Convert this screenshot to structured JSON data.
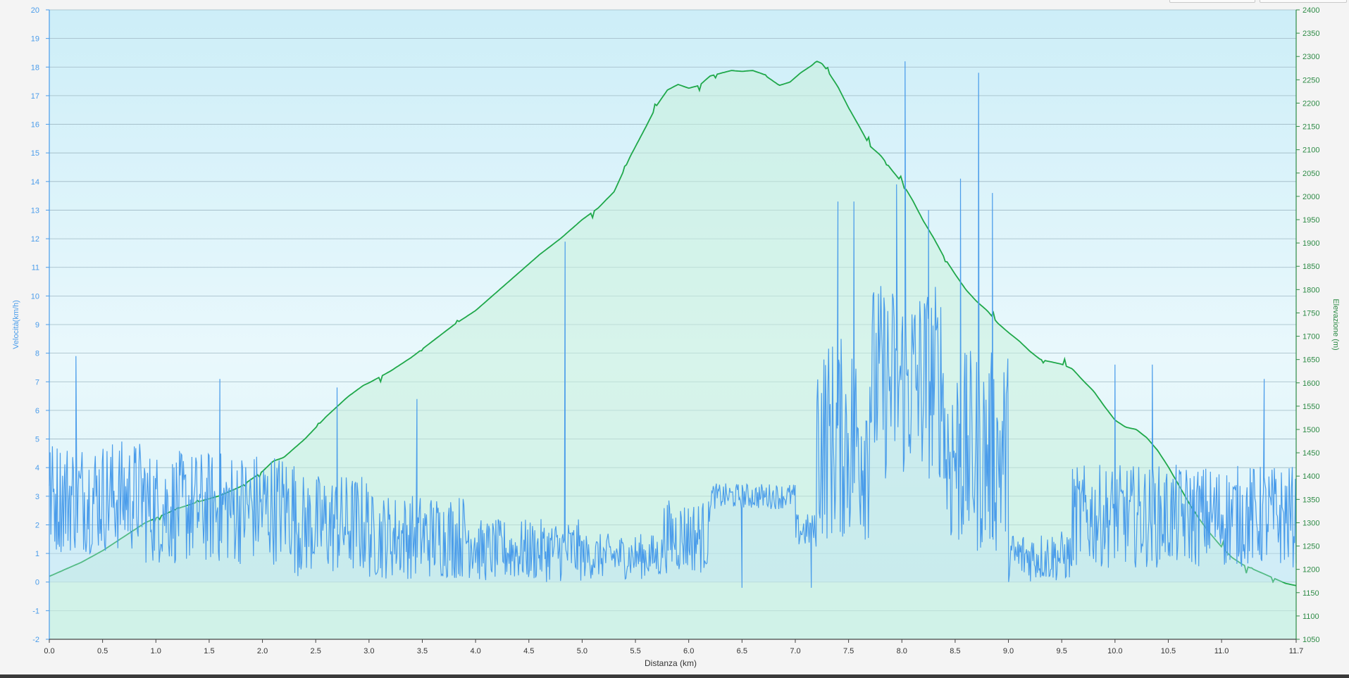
{
  "chart_data": {
    "type": "line",
    "xlabel": "Distanza  (km)",
    "ylabel": "Velocità(km/h)",
    "y2label": "Elevazione (m)",
    "xlim": [
      0,
      11.7
    ],
    "ylim": [
      -2,
      20
    ],
    "y2lim": [
      1050,
      2400
    ],
    "x_ticks": [
      0.0,
      0.5,
      1.0,
      1.5,
      2.0,
      2.5,
      3.0,
      3.5,
      4.0,
      4.5,
      5.0,
      5.5,
      6.0,
      6.5,
      7.0,
      7.5,
      8.0,
      8.5,
      9.0,
      9.5,
      10.0,
      10.5,
      11.0,
      11.7
    ],
    "y_ticks": [
      -2,
      -1,
      0,
      1,
      2,
      3,
      4,
      5,
      6,
      7,
      8,
      9,
      10,
      11,
      12,
      13,
      14,
      15,
      16,
      17,
      18,
      19,
      20
    ],
    "y2_ticks": [
      1050,
      1100,
      1150,
      1200,
      1250,
      1300,
      1350,
      1400,
      1450,
      1500,
      1550,
      1600,
      1650,
      1700,
      1750,
      1800,
      1850,
      1900,
      1950,
      2000,
      2050,
      2100,
      2150,
      2200,
      2250,
      2300,
      2350,
      2400
    ],
    "grid": true,
    "colors": {
      "speed": "#4a9cea",
      "elevation": "#1fa84a",
      "left_axis": "#4a9cea",
      "right_axis": "#2e8b46"
    },
    "series": [
      {
        "name": "Elevazione (m)",
        "axis": "right",
        "x": [
          0.0,
          0.1,
          0.3,
          0.5,
          0.7,
          0.9,
          1.0,
          1.2,
          1.4,
          1.6,
          1.8,
          2.0,
          2.1,
          2.2,
          2.4,
          2.6,
          2.8,
          2.95,
          3.0,
          3.2,
          3.4,
          3.6,
          3.8,
          4.0,
          4.2,
          4.4,
          4.6,
          4.8,
          5.0,
          5.15,
          5.3,
          5.45,
          5.6,
          5.7,
          5.8,
          5.9,
          6.0,
          6.1,
          6.2,
          6.4,
          6.5,
          6.6,
          6.7,
          6.85,
          6.95,
          7.05,
          7.15,
          7.2,
          7.25,
          7.3,
          7.4,
          7.5,
          7.6,
          7.7,
          7.8,
          7.9,
          8.0,
          8.1,
          8.2,
          8.3,
          8.4,
          8.5,
          8.6,
          8.7,
          8.8,
          8.9,
          9.0,
          9.1,
          9.2,
          9.3,
          9.4,
          9.5,
          9.6,
          9.7,
          9.8,
          9.9,
          10.0,
          10.1,
          10.2,
          10.3,
          10.4,
          10.5,
          10.6,
          10.7,
          10.8,
          10.9,
          11.0,
          11.1,
          11.2,
          11.3,
          11.4,
          11.5,
          11.6,
          11.7
        ],
        "values": [
          1185,
          1195,
          1215,
          1240,
          1270,
          1300,
          1310,
          1330,
          1345,
          1358,
          1378,
          1410,
          1432,
          1440,
          1480,
          1528,
          1570,
          1595,
          1600,
          1625,
          1655,
          1690,
          1725,
          1755,
          1795,
          1835,
          1875,
          1910,
          1950,
          1975,
          2010,
          2085,
          2150,
          2195,
          2228,
          2240,
          2232,
          2238,
          2258,
          2270,
          2268,
          2270,
          2262,
          2238,
          2245,
          2265,
          2280,
          2290,
          2285,
          2270,
          2235,
          2190,
          2150,
          2108,
          2088,
          2058,
          2030,
          1992,
          1948,
          1910,
          1868,
          1833,
          1800,
          1775,
          1755,
          1728,
          1708,
          1690,
          1668,
          1650,
          1645,
          1640,
          1630,
          1605,
          1582,
          1550,
          1520,
          1505,
          1500,
          1482,
          1455,
          1420,
          1380,
          1340,
          1305,
          1275,
          1248,
          1225,
          1210,
          1200,
          1190,
          1180,
          1170,
          1165
        ]
      },
      {
        "name": "Velocità(km/h)",
        "axis": "left",
        "segments": [
          {
            "from": 0.0,
            "to": 0.9,
            "base": 3.0,
            "amp": 2.0
          },
          {
            "from": 0.9,
            "to": 2.3,
            "base": 2.6,
            "amp": 2.0
          },
          {
            "from": 2.3,
            "to": 3.0,
            "base": 2.0,
            "amp": 1.8
          },
          {
            "from": 3.0,
            "to": 4.0,
            "base": 1.6,
            "amp": 1.5
          },
          {
            "from": 4.0,
            "to": 5.0,
            "base": 1.1,
            "amp": 1.1
          },
          {
            "from": 5.0,
            "to": 5.75,
            "base": 0.9,
            "amp": 0.8
          },
          {
            "from": 5.75,
            "to": 6.2,
            "base": 1.6,
            "amp": 1.3
          },
          {
            "from": 6.2,
            "to": 7.0,
            "base": 3.0,
            "amp": 0.45
          },
          {
            "from": 7.0,
            "to": 7.2,
            "base": 1.8,
            "amp": 0.6
          },
          {
            "from": 7.2,
            "to": 7.7,
            "base": 5.0,
            "amp": 3.6
          },
          {
            "from": 7.7,
            "to": 8.4,
            "base": 7.0,
            "amp": 3.5
          },
          {
            "from": 8.4,
            "to": 9.0,
            "base": 4.5,
            "amp": 3.6
          },
          {
            "from": 9.0,
            "to": 9.6,
            "base": 0.9,
            "amp": 0.9
          },
          {
            "from": 9.6,
            "to": 11.7,
            "base": 2.3,
            "amp": 1.8
          }
        ],
        "spikes": [
          {
            "x": 0.25,
            "y": 7.9
          },
          {
            "x": 1.6,
            "y": 7.1
          },
          {
            "x": 2.7,
            "y": 6.8
          },
          {
            "x": 3.45,
            "y": 6.4
          },
          {
            "x": 4.84,
            "y": 11.9
          },
          {
            "x": 7.4,
            "y": 13.3
          },
          {
            "x": 7.55,
            "y": 13.3
          },
          {
            "x": 7.95,
            "y": 13.9
          },
          {
            "x": 8.03,
            "y": 18.2
          },
          {
            "x": 8.25,
            "y": 13.0
          },
          {
            "x": 8.55,
            "y": 14.1
          },
          {
            "x": 8.72,
            "y": 17.8
          },
          {
            "x": 8.85,
            "y": 13.6
          },
          {
            "x": 10.0,
            "y": 7.6
          },
          {
            "x": 10.35,
            "y": 7.6
          },
          {
            "x": 11.4,
            "y": 7.1
          },
          {
            "x": 6.5,
            "y": -0.2
          },
          {
            "x": 7.15,
            "y": -0.2
          }
        ]
      }
    ]
  }
}
